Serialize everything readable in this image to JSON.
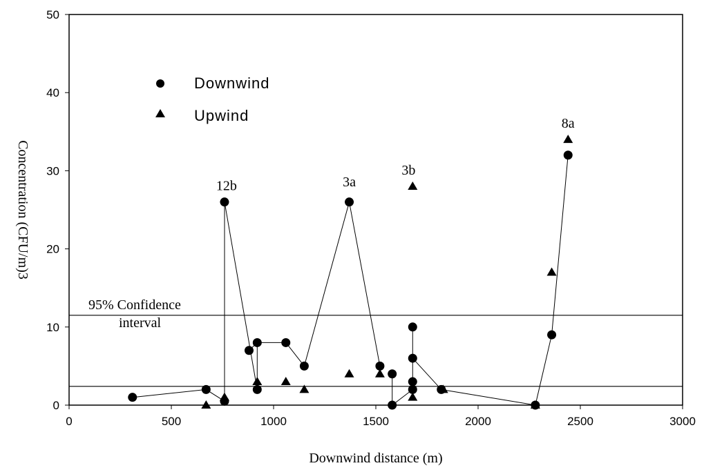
{
  "chart_data": {
    "type": "scatter",
    "xlabel": "Downwind distance (m)",
    "ylabel": "Concentration (CFU/m)3",
    "xlim": [
      0,
      3000
    ],
    "ylim": [
      0,
      50
    ],
    "x_ticks": [
      "0",
      "500",
      "1000",
      "1500",
      "2000",
      "2500",
      "3000"
    ],
    "y_ticks": [
      "0",
      "10",
      "20",
      "30",
      "40",
      "50"
    ],
    "grid": false,
    "legend_position": "top-left",
    "legend": [
      "Downwind",
      "Upwind"
    ],
    "confidence_label": [
      "95% Confidence",
      "interval"
    ],
    "confidence_lines": [
      11.5,
      2.4
    ],
    "series": [
      {
        "name": "Downwind",
        "marker": "circle",
        "points": [
          [
            310,
            1
          ],
          [
            670,
            2
          ],
          [
            760,
            0.5
          ],
          [
            760,
            26
          ],
          [
            880,
            7
          ],
          [
            920,
            2
          ],
          [
            920,
            8
          ],
          [
            1060,
            8
          ],
          [
            1150,
            5
          ],
          [
            1370,
            26
          ],
          [
            1520,
            5
          ],
          [
            1580,
            4
          ],
          [
            1580,
            0
          ],
          [
            1680,
            2
          ],
          [
            1680,
            3
          ],
          [
            1680,
            6
          ],
          [
            1680,
            10
          ],
          [
            1820,
            2
          ],
          [
            2280,
            0
          ],
          [
            2360,
            9
          ],
          [
            2440,
            32
          ]
        ]
      },
      {
        "name": "Upwind",
        "marker": "triangle",
        "points": [
          [
            670,
            0
          ],
          [
            760,
            1
          ],
          [
            920,
            3
          ],
          [
            1060,
            3
          ],
          [
            1150,
            2
          ],
          [
            1370,
            4
          ],
          [
            1520,
            4
          ],
          [
            1680,
            1
          ],
          [
            1680,
            28
          ],
          [
            1830,
            2
          ],
          [
            2280,
            0
          ],
          [
            2360,
            17
          ],
          [
            2440,
            34
          ]
        ]
      }
    ],
    "connecting_lines": [
      [
        [
          310,
          1
        ],
        [
          670,
          2
        ],
        [
          760,
          0.5
        ]
      ],
      [
        [
          760,
          0
        ],
        [
          760,
          26
        ],
        [
          920,
          2
        ],
        [
          920,
          8
        ],
        [
          1060,
          8
        ],
        [
          1150,
          5
        ],
        [
          1370,
          26
        ],
        [
          1520,
          5
        ],
        [
          1520,
          4
        ]
      ],
      [
        [
          880,
          7
        ],
        [
          920,
          8
        ]
      ],
      [
        [
          1580,
          4
        ],
        [
          1580,
          0
        ],
        [
          1680,
          2
        ]
      ],
      [
        [
          1680,
          1
        ],
        [
          1680,
          10
        ]
      ],
      [
        [
          1680,
          6
        ],
        [
          1820,
          2
        ],
        [
          2280,
          0
        ],
        [
          2360,
          9
        ],
        [
          2440,
          32
        ]
      ]
    ],
    "annotations": [
      {
        "text": "12b",
        "x": 770,
        "y": 27.5
      },
      {
        "text": "3a",
        "x": 1370,
        "y": 28
      },
      {
        "text": "3b",
        "x": 1660,
        "y": 29.5
      },
      {
        "text": "8a",
        "x": 2440,
        "y": 35.5
      }
    ]
  }
}
